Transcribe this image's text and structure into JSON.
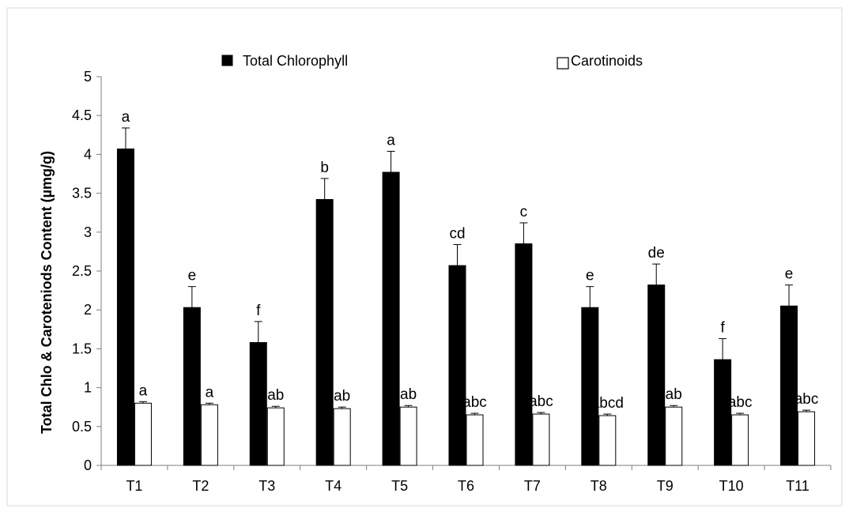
{
  "chart_data": {
    "type": "bar",
    "title": "",
    "xlabel": "",
    "ylabel": "Total Chlo & Caroteniods Content (µmg/g)",
    "ylim": [
      0,
      5
    ],
    "yticks": [
      "0",
      "0.5",
      "1",
      "1.5",
      "2",
      "2.5",
      "3",
      "3.5",
      "4",
      "4.5",
      "5"
    ],
    "ytick_values": [
      0,
      0.5,
      1,
      1.5,
      2,
      2.5,
      3,
      3.5,
      4,
      4.5,
      5
    ],
    "grid": false,
    "legend_position": "top",
    "categories": [
      "T1",
      "T2",
      "T3",
      "T4",
      "T5",
      "T6",
      "T7",
      "T8",
      "T9",
      "T10",
      "T11"
    ],
    "series": [
      {
        "name": "Total Chlorophyll",
        "color": "#000000",
        "values": [
          4.07,
          2.03,
          1.58,
          3.42,
          3.77,
          2.57,
          2.85,
          2.03,
          2.32,
          1.36,
          2.05
        ],
        "errors": [
          0.27,
          0.27,
          0.27,
          0.27,
          0.27,
          0.27,
          0.27,
          0.27,
          0.27,
          0.27,
          0.27
        ],
        "labels": [
          "a",
          "e",
          "f",
          "b",
          "a",
          "cd",
          "c",
          "e",
          "de",
          "f",
          "e"
        ]
      },
      {
        "name": "Carotinoids",
        "color": "#ffffff",
        "values": [
          0.8,
          0.78,
          0.74,
          0.73,
          0.75,
          0.65,
          0.66,
          0.64,
          0.75,
          0.65,
          0.69
        ],
        "errors": [
          0.02,
          0.02,
          0.02,
          0.02,
          0.02,
          0.02,
          0.02,
          0.02,
          0.02,
          0.02,
          0.02
        ],
        "labels": [
          "a",
          "a",
          "ab",
          "ab",
          "ab",
          "abc",
          "abc",
          "abcd",
          "ab",
          "abc",
          "abc"
        ]
      }
    ]
  }
}
